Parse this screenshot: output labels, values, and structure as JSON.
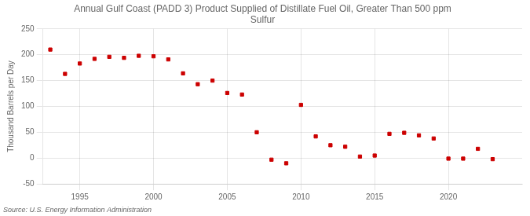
{
  "chart_data": {
    "type": "scatter",
    "title": "Annual Gulf Coast (PADD 3) Product Supplied of Distillate Fuel Oil, Greater Than 500 ppm\nSulfur",
    "y_label": "Thousand Barrels per Day",
    "source": "Source: U.S. Energy Information Administration",
    "x": [
      1993,
      1994,
      1995,
      1996,
      1997,
      1998,
      1999,
      2000,
      2001,
      2002,
      2003,
      2004,
      2005,
      2006,
      2007,
      2008,
      2009,
      2010,
      2011,
      2012,
      2013,
      2014,
      2015,
      2016,
      2017,
      2018,
      2019,
      2020,
      2021,
      2022,
      2023
    ],
    "values": [
      210,
      163,
      183,
      192,
      196,
      194,
      198,
      197,
      191,
      164,
      143,
      150,
      126,
      123,
      50,
      -3,
      -10,
      103,
      42,
      25,
      22,
      3,
      5,
      47,
      49,
      44,
      38,
      -1,
      -1,
      18,
      -2
    ],
    "color": "#cc0000",
    "marker": "square",
    "xlim": [
      1992.5,
      2025.0
    ],
    "xticks": [
      1995,
      2000,
      2005,
      2010,
      2015,
      2020
    ],
    "ylim": [
      -50,
      250
    ],
    "yticks": [
      -50,
      0,
      50,
      100,
      150,
      200,
      250
    ],
    "grid": true
  }
}
